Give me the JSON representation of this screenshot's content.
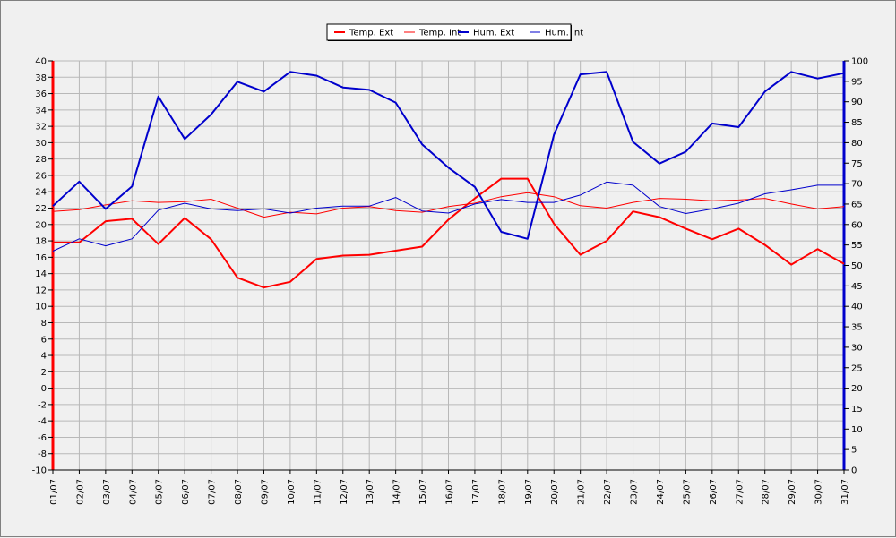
{
  "chart_data": {
    "type": "line",
    "title": "",
    "xlabel": "",
    "ylabel_left": "",
    "ylabel_right": "",
    "x": [
      "01/07",
      "02/07",
      "03/07",
      "04/07",
      "05/07",
      "06/07",
      "07/07",
      "08/07",
      "09/07",
      "10/07",
      "11/07",
      "12/07",
      "13/07",
      "14/07",
      "15/07",
      "16/07",
      "17/07",
      "18/07",
      "19/07",
      "20/07",
      "21/07",
      "22/07",
      "23/07",
      "24/07",
      "25/07",
      "26/07",
      "27/07",
      "28/07",
      "29/07",
      "30/07",
      "31/07"
    ],
    "y_left_lim": [
      -10,
      40
    ],
    "y_left_ticks": [
      -10,
      -8,
      -6,
      -4,
      -2,
      0,
      2,
      4,
      6,
      8,
      10,
      12,
      14,
      16,
      18,
      20,
      22,
      24,
      26,
      28,
      30,
      32,
      34,
      36,
      38,
      40
    ],
    "y_right_lim": [
      0,
      100
    ],
    "y_right_ticks": [
      0,
      5,
      10,
      15,
      20,
      25,
      30,
      35,
      40,
      45,
      50,
      55,
      60,
      65,
      70,
      75,
      80,
      85,
      90,
      95,
      100
    ],
    "grid": true,
    "legend_position": "top-center",
    "series": [
      {
        "name": "Temp. Ext",
        "axis": "left",
        "color": "#ff0000",
        "width": 2,
        "values": [
          17.8,
          17.8,
          20.4,
          20.7,
          17.6,
          20.8,
          18.2,
          13.5,
          12.3,
          13.0,
          15.8,
          16.2,
          16.3,
          16.8,
          17.3,
          20.6,
          23.2,
          25.6,
          25.6,
          20.1,
          16.3,
          18.0,
          21.6,
          20.9,
          19.5,
          18.2,
          19.5,
          17.5,
          15.1,
          17.0,
          15.2
        ]
      },
      {
        "name": "Temp. Int",
        "axis": "left",
        "color": "#ff0000",
        "width": 1,
        "values": [
          21.6,
          21.8,
          22.4,
          22.9,
          22.7,
          22.8,
          23.1,
          22.0,
          20.9,
          21.5,
          21.3,
          22.0,
          22.2,
          21.7,
          21.5,
          22.2,
          22.6,
          23.4,
          23.9,
          23.4,
          22.3,
          22.0,
          22.7,
          23.2,
          23.1,
          22.9,
          23.0,
          23.2,
          22.5,
          21.9,
          22.2
        ]
      },
      {
        "name": "Hum. Ext",
        "axis": "right",
        "color": "#0000cc",
        "width": 2,
        "values": [
          64.5,
          70.5,
          63.8,
          69.3,
          91.3,
          80.9,
          86.9,
          94.9,
          92.5,
          97.3,
          96.4,
          93.5,
          92.9,
          89.8,
          79.6,
          73.9,
          69.2,
          58.2,
          56.5,
          81.9,
          96.7,
          97.3,
          80.2,
          74.9,
          77.8,
          84.7,
          83.8,
          92.5,
          97.3,
          95.7,
          97.0
        ]
      },
      {
        "name": "Hum. Int",
        "axis": "right",
        "color": "#0000cc",
        "width": 1,
        "values": [
          53.5,
          56.5,
          54.8,
          56.5,
          63.5,
          65.2,
          63.8,
          63.4,
          63.8,
          62.8,
          64.0,
          64.5,
          64.5,
          66.6,
          63.3,
          62.8,
          65.0,
          66.1,
          65.4,
          65.4,
          67.2,
          70.4,
          69.6,
          64.4,
          62.7,
          63.8,
          65.2,
          67.5,
          68.5,
          69.6,
          69.6
        ]
      }
    ]
  }
}
